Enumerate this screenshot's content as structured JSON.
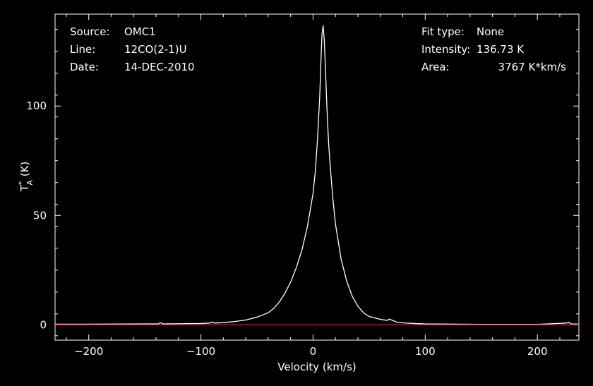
{
  "header": {
    "source_label": "Source:",
    "source_value": "OMC1",
    "line_label": "Line:",
    "line_value": "12CO(2-1)U",
    "date_label": "Date:",
    "date_value": "14-DEC-2010",
    "fit_label": "Fit type:",
    "fit_value": "None",
    "intensity_label": "Intensity:",
    "intensity_value": "136.73 K",
    "area_label": "Area:",
    "area_value": "3767 K*km/s"
  },
  "chart_data": {
    "type": "line",
    "title": "",
    "xlabel": "Velocity (km/s)",
    "ylabel": "T*A (K)",
    "xlim": [
      -230,
      237
    ],
    "ylim": [
      -7,
      142
    ],
    "x_ticks": [
      -200,
      -100,
      0,
      100,
      200
    ],
    "x_tick_labels": [
      "−200",
      "−100",
      "0",
      "100",
      "200"
    ],
    "y_ticks": [
      0,
      50,
      100
    ],
    "y_tick_labels": [
      "0",
      "50",
      "100"
    ],
    "grid": false,
    "series": [
      {
        "color": "#ffffff",
        "x": [
          -230,
          -200,
          -150,
          -138,
          -136,
          -134,
          -120,
          -100,
          -92,
          -90,
          -88,
          -80,
          -70,
          -60,
          -50,
          -40,
          -35,
          -30,
          -25,
          -20,
          -15,
          -10,
          -5,
          0,
          2,
          4,
          6,
          7,
          8,
          9,
          10,
          11,
          12,
          13,
          14,
          16,
          18,
          20,
          25,
          30,
          35,
          40,
          45,
          50,
          60,
          66,
          68,
          70,
          72,
          74,
          80,
          90,
          100,
          150,
          200,
          226,
          228,
          230,
          237
        ],
        "values": [
          0.3,
          0.3,
          0.4,
          0.4,
          1.0,
          0.4,
          0.5,
          0.6,
          0.8,
          1.3,
          0.8,
          1.0,
          1.5,
          2.2,
          3.5,
          5.5,
          7.5,
          10.5,
          14.5,
          19.5,
          26,
          34,
          45,
          60,
          70,
          85,
          105,
          120,
          133,
          136.7,
          130,
          118,
          104,
          92,
          82,
          68,
          56,
          46,
          30,
          20,
          13,
          8.5,
          5.5,
          3.8,
          2.5,
          2.0,
          2.6,
          2.2,
          1.8,
          1.3,
          0.9,
          0.6,
          0.4,
          0.2,
          0.2,
          0.8,
          1.2,
          0.4,
          0.3
        ]
      },
      {
        "color": "#ff0000",
        "x": [
          -230,
          237
        ],
        "values": [
          0,
          0
        ]
      }
    ]
  }
}
